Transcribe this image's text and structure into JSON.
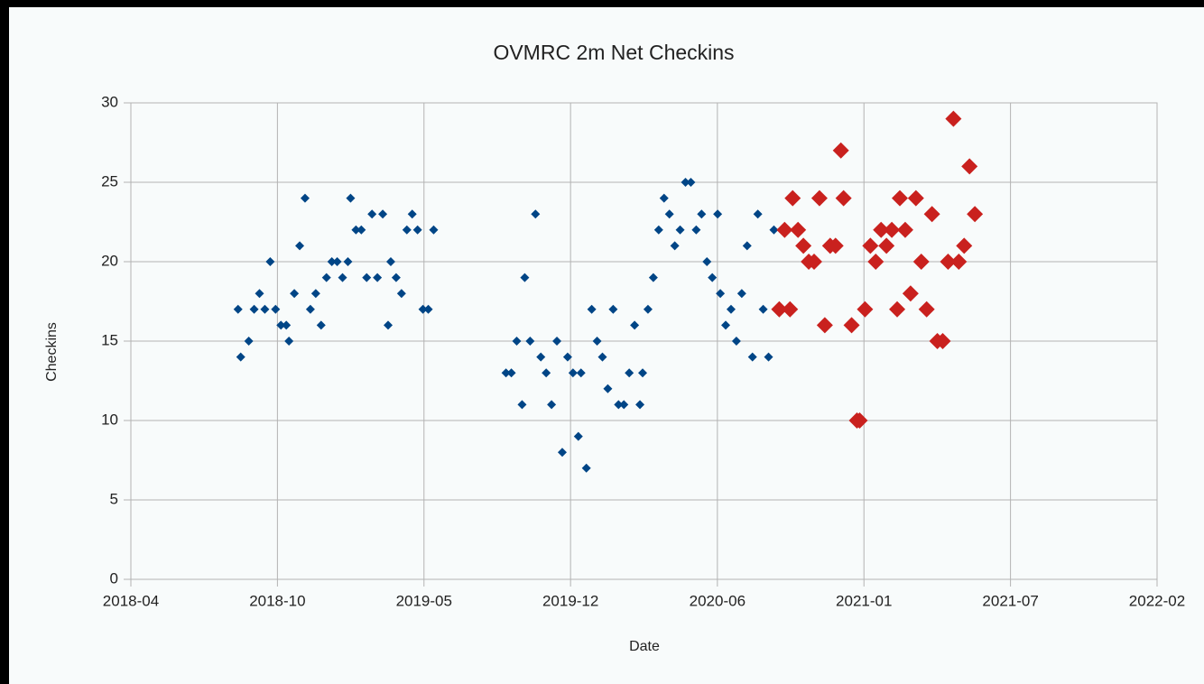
{
  "chart_data": {
    "type": "scatter",
    "title": "OVMRC 2m Net Checkins",
    "xlabel": "Date",
    "ylabel": "Checkins",
    "xlim": [
      2018.27,
      2022.1
    ],
    "xticks": [
      {
        "value": 2018.27,
        "label": "2018-04"
      },
      {
        "value": 2018.817,
        "label": "2018-10"
      },
      {
        "value": 2019.364,
        "label": "2019-05"
      },
      {
        "value": 2019.911,
        "label": "2019-12"
      },
      {
        "value": 2020.459,
        "label": "2020-06"
      },
      {
        "value": 2021.006,
        "label": "2021-01"
      },
      {
        "value": 2021.553,
        "label": "2021-07"
      },
      {
        "value": 2022.1,
        "label": "2022-02"
      }
    ],
    "ylim": [
      0,
      30
    ],
    "yticks": [
      0,
      5,
      10,
      15,
      20,
      25,
      30
    ],
    "grid": true,
    "series": [
      {
        "color": "#004586",
        "marker_size": 5,
        "x": [
          2018.67,
          2018.68,
          2018.71,
          2018.73,
          2018.75,
          2018.77,
          2018.79,
          2018.81,
          2018.83,
          2018.85,
          2018.86,
          2018.88,
          2018.9,
          2018.92,
          2018.94,
          2018.96,
          2018.98,
          2019.0,
          2019.02,
          2019.04,
          2019.06,
          2019.08,
          2019.09,
          2019.11,
          2019.13,
          2019.15,
          2019.17,
          2019.19,
          2019.21,
          2019.23,
          2019.24,
          2019.26,
          2019.28,
          2019.3,
          2019.32,
          2019.34,
          2019.36,
          2019.38,
          2019.4,
          2019.67,
          2019.69,
          2019.71,
          2019.73,
          2019.74,
          2019.76,
          2019.78,
          2019.8,
          2019.82,
          2019.84,
          2019.86,
          2019.88,
          2019.9,
          2019.92,
          2019.94,
          2019.95,
          2019.97,
          2019.99,
          2020.01,
          2020.03,
          2020.05,
          2020.07,
          2020.09,
          2020.11,
          2020.13,
          2020.15,
          2020.17,
          2020.18,
          2020.2,
          2020.22,
          2020.24,
          2020.26,
          2020.28,
          2020.3,
          2020.32,
          2020.34,
          2020.36,
          2020.38,
          2020.4,
          2020.42,
          2020.44,
          2020.46,
          2020.47,
          2020.49,
          2020.51,
          2020.53,
          2020.55,
          2020.57,
          2020.59,
          2020.61,
          2020.63,
          2020.65,
          2020.67
        ],
        "values": [
          17,
          14,
          15,
          17,
          18,
          17,
          20,
          17,
          16,
          16,
          15,
          18,
          21,
          24,
          17,
          18,
          16,
          19,
          20,
          20,
          19,
          20,
          24,
          22,
          22,
          19,
          23,
          19,
          23,
          16,
          20,
          19,
          18,
          22,
          23,
          22,
          17,
          17,
          22,
          13,
          13,
          15,
          11,
          19,
          15,
          23,
          14,
          13,
          11,
          15,
          8,
          14,
          13,
          9,
          13,
          7,
          17,
          15,
          14,
          12,
          17,
          11,
          11,
          13,
          16,
          11,
          13,
          17,
          19,
          22,
          24,
          23,
          21,
          22,
          25,
          25,
          22,
          23,
          20,
          19,
          23,
          18,
          16,
          17,
          15,
          18,
          21,
          14,
          23,
          17,
          14,
          22
        ]
      },
      {
        "color": "#c9211e",
        "marker_size": 9,
        "x": [
          2020.69,
          2020.71,
          2020.73,
          2020.74,
          2020.76,
          2020.78,
          2020.8,
          2020.82,
          2020.84,
          2020.86,
          2020.88,
          2020.9,
          2020.92,
          2020.93,
          2020.96,
          2020.98,
          2020.99,
          2021.01,
          2021.03,
          2021.05,
          2021.07,
          2021.09,
          2021.11,
          2021.13,
          2021.14,
          2021.16,
          2021.18,
          2021.2,
          2021.22,
          2021.24,
          2021.26,
          2021.28,
          2021.3,
          2021.32,
          2021.34,
          2021.36,
          2021.38,
          2021.4,
          2021.42
        ],
        "values": [
          17,
          22,
          17,
          24,
          22,
          21,
          20,
          20,
          24,
          16,
          21,
          21,
          27,
          24,
          16,
          10,
          10,
          17,
          21,
          20,
          22,
          21,
          22,
          17,
          24,
          22,
          18,
          24,
          20,
          17,
          23,
          15,
          15,
          20,
          29,
          20,
          21,
          26,
          23
        ]
      }
    ]
  }
}
